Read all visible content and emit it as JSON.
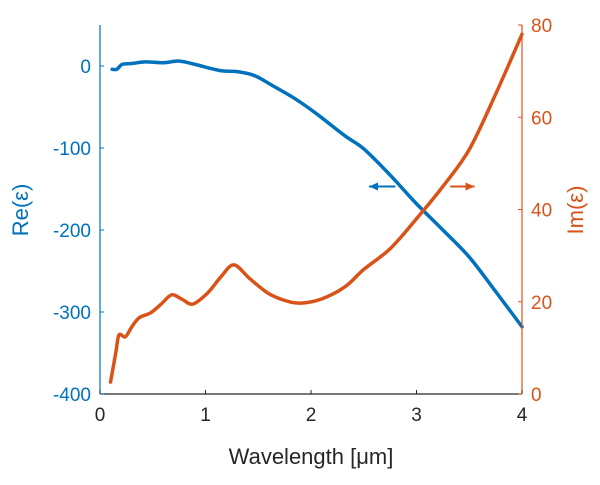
{
  "chart_data": {
    "type": "line",
    "xlabel": "Wavelength [μm]",
    "xlim": [
      0,
      4
    ],
    "xticks": [
      "0",
      "1",
      "2",
      "3",
      "4"
    ],
    "grid": false,
    "left_axis": {
      "label": "Re(ε)",
      "color": "#0072BD",
      "ylim": [
        -400,
        50
      ],
      "ticks": [
        "0",
        "-100",
        "-200",
        "-300",
        "-400"
      ],
      "tick_values": [
        0,
        -100,
        -200,
        -300,
        -400
      ]
    },
    "right_axis": {
      "label": "Im(ε)",
      "color": "#D95319",
      "ylim": [
        0,
        80
      ],
      "ticks": [
        "0",
        "20",
        "40",
        "60",
        "80"
      ],
      "tick_values": [
        0,
        20,
        40,
        60,
        80
      ]
    },
    "series": [
      {
        "axis": "left",
        "color": "#0072BD",
        "x": [
          0.115,
          0.16,
          0.21,
          0.3,
          0.43,
          0.6,
          0.75,
          0.9,
          1.05,
          1.16,
          1.31,
          1.47,
          1.65,
          1.85,
          2.05,
          2.32,
          2.5,
          2.75,
          3.0,
          3.25,
          3.5,
          3.75,
          4.0
        ],
        "y": [
          -4,
          -4,
          2,
          3,
          5,
          4,
          6,
          2,
          -3,
          -6,
          -7,
          -12,
          -25,
          -40,
          -58,
          -85,
          -101,
          -133,
          -168,
          -200,
          -233,
          -275,
          -318
        ]
      },
      {
        "axis": "right",
        "color": "#D95319",
        "x": [
          0.1,
          0.15,
          0.18,
          0.24,
          0.3,
          0.37,
          0.48,
          0.58,
          0.68,
          0.78,
          0.88,
          1.02,
          1.15,
          1.27,
          1.42,
          1.59,
          1.75,
          1.9,
          2.1,
          2.32,
          2.5,
          2.75,
          3.0,
          3.25,
          3.5,
          3.75,
          4.0
        ],
        "y": [
          2.6,
          9,
          12.8,
          12.4,
          14.5,
          16.5,
          17.6,
          19.5,
          21.5,
          20.5,
          19.5,
          21.9,
          25.5,
          28,
          25,
          21.9,
          20.3,
          19.7,
          20.6,
          23.2,
          27,
          31.5,
          38,
          45,
          53,
          65,
          78
        ]
      }
    ],
    "annotations": [
      {
        "type": "arrow",
        "direction": "left",
        "color": "#0072BD",
        "x": [
          2.55,
          2.8
        ],
        "y_right": 45
      },
      {
        "type": "arrow",
        "direction": "right",
        "color": "#D95319",
        "x": [
          3.32,
          3.55
        ],
        "y_right": 45
      }
    ]
  }
}
